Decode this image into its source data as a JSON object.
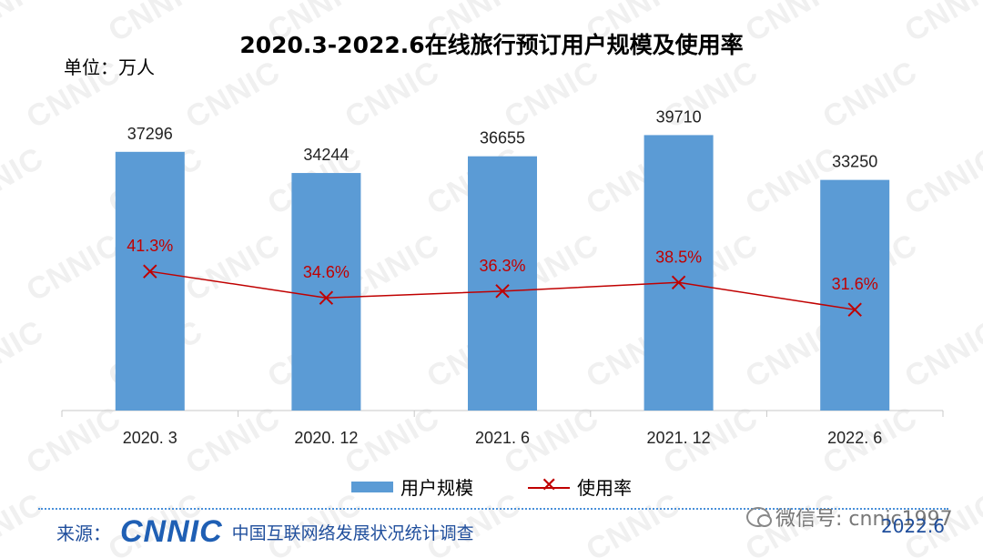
{
  "header": {
    "title": "2020.3-2022.6在线旅行预订用户规模及使用率",
    "unit": "单位：万人"
  },
  "chart_data": {
    "type": "bar",
    "title": "2020.3-2022.6在线旅行预订用户规模及使用率",
    "categories": [
      "2020. 3",
      "2020. 12",
      "2021. 6",
      "2021. 12",
      "2022. 6"
    ],
    "series": [
      {
        "name": "用户规模",
        "type": "bar",
        "values": [
          37296,
          34244,
          36655,
          39710,
          33250
        ],
        "labels": [
          "37296",
          "34244",
          "36655",
          "39710",
          "33250"
        ],
        "color": "#5b9bd5"
      },
      {
        "name": "使用率",
        "type": "line",
        "values": [
          41.3,
          34.6,
          36.3,
          38.5,
          31.6
        ],
        "labels": [
          "41.3%",
          "34.6%",
          "36.3%",
          "38.5%",
          "31.6%"
        ],
        "color": "#c00000"
      }
    ],
    "bar_ylim": [
      0,
      50000
    ],
    "rate_ylim": [
      0,
      100
    ],
    "legend_position": "bottom"
  },
  "legend": {
    "bar_label": "用户规模",
    "line_label": "使用率",
    "marker": "✕"
  },
  "footer": {
    "source_label": "来源：",
    "logo": "CNNIC",
    "org": "中国互联网络发展状况统计调查",
    "wechat": "微信号: cnnic1997",
    "date": "2022.6"
  },
  "watermark": {
    "text": "CNNIC"
  }
}
